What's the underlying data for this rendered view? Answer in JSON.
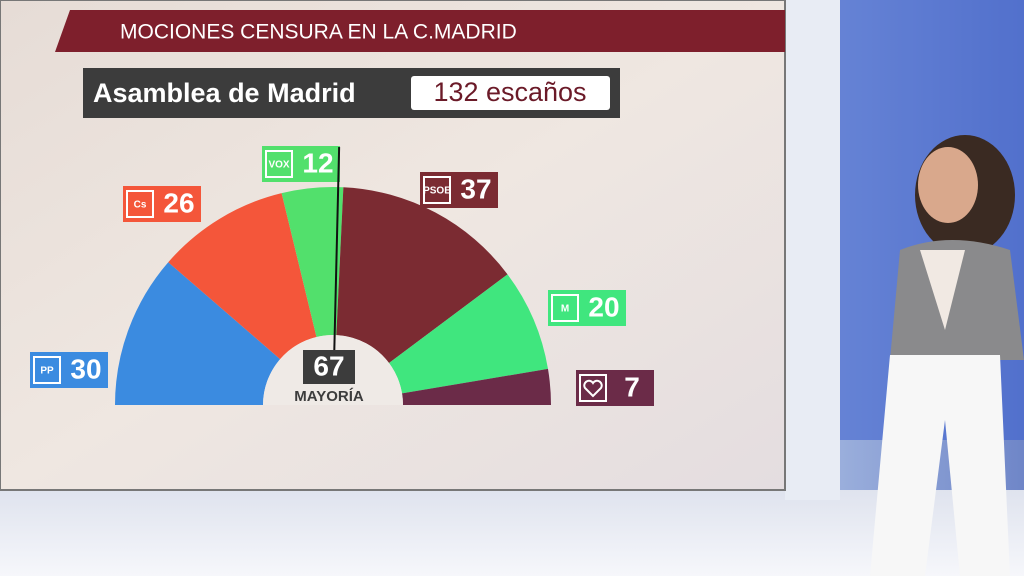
{
  "chart_data": {
    "type": "parliament",
    "title": "MOCIONES CENSURA EN LA C.MADRID",
    "subtitle": "Asamblea de Madrid",
    "total_label": "132 escaños",
    "majority": 67,
    "majority_label": "MAYORÍA",
    "categories": [
      "PP",
      "Cs",
      "VOX",
      "PSOE",
      "M",
      null
    ],
    "values": [
      30,
      26,
      12,
      37,
      20,
      7
    ],
    "colors": [
      "#3b8be0",
      "#f4563a",
      "#52e06c",
      "#7b2b32",
      "#40e67e",
      "#6b2b48"
    ]
  }
}
